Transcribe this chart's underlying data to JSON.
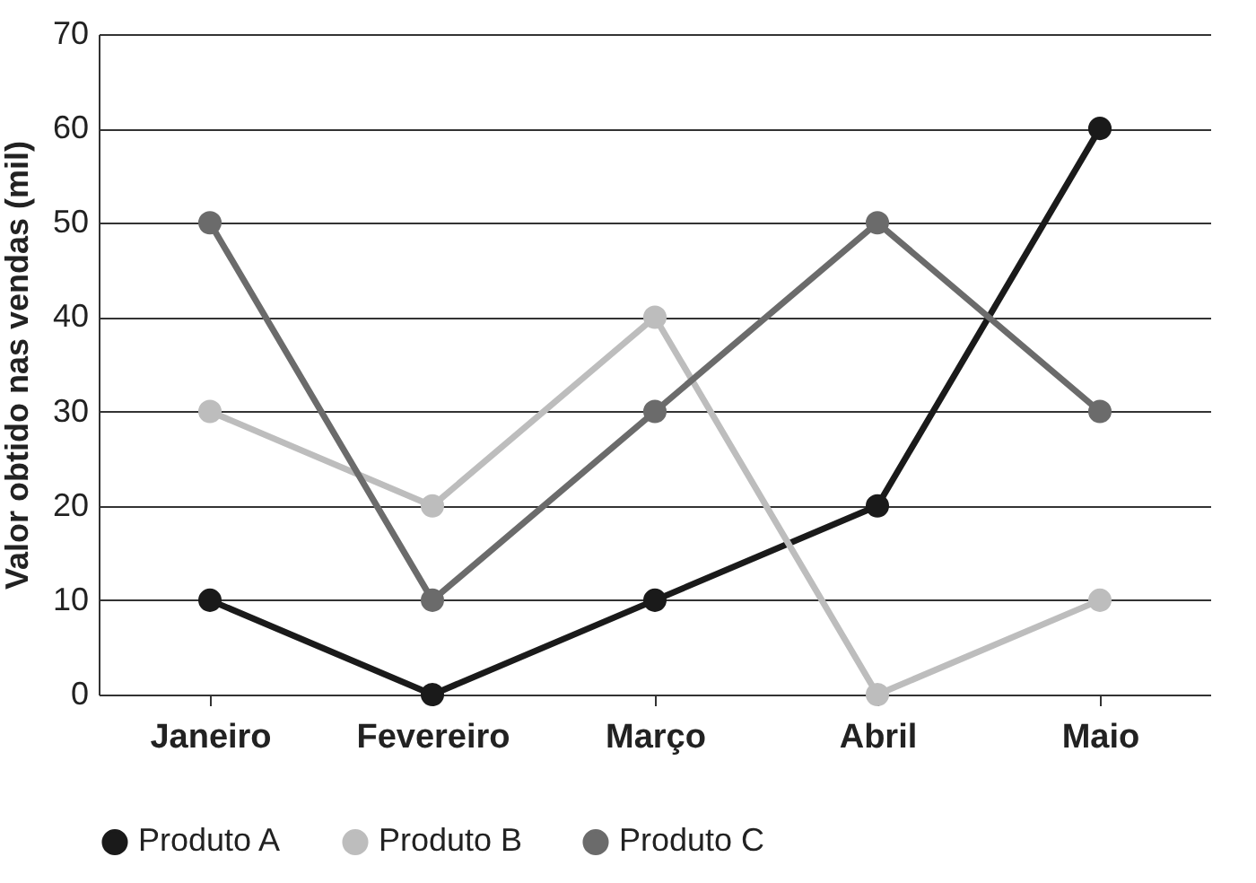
{
  "chart_data": {
    "type": "line",
    "ylabel": "Valor obtido nas vendas (mil)",
    "categories": [
      "Janeiro",
      "Fevereiro",
      "Março",
      "Abril",
      "Maio"
    ],
    "series": [
      {
        "name": "Produto A",
        "color": "#1a1a1a",
        "values": [
          10,
          0,
          10,
          20,
          60
        ]
      },
      {
        "name": "Produto B",
        "color": "#bdbdbd",
        "values": [
          30,
          20,
          40,
          0,
          10
        ]
      },
      {
        "name": "Produto C",
        "color": "#6b6b6b",
        "values": [
          50,
          10,
          30,
          50,
          30
        ]
      }
    ],
    "ylim": [
      0,
      70
    ],
    "yticks": [
      0,
      10,
      20,
      30,
      40,
      50,
      60,
      70
    ],
    "grid": "y",
    "legend": "bottom",
    "marker": "circle",
    "line_style": "solid"
  }
}
